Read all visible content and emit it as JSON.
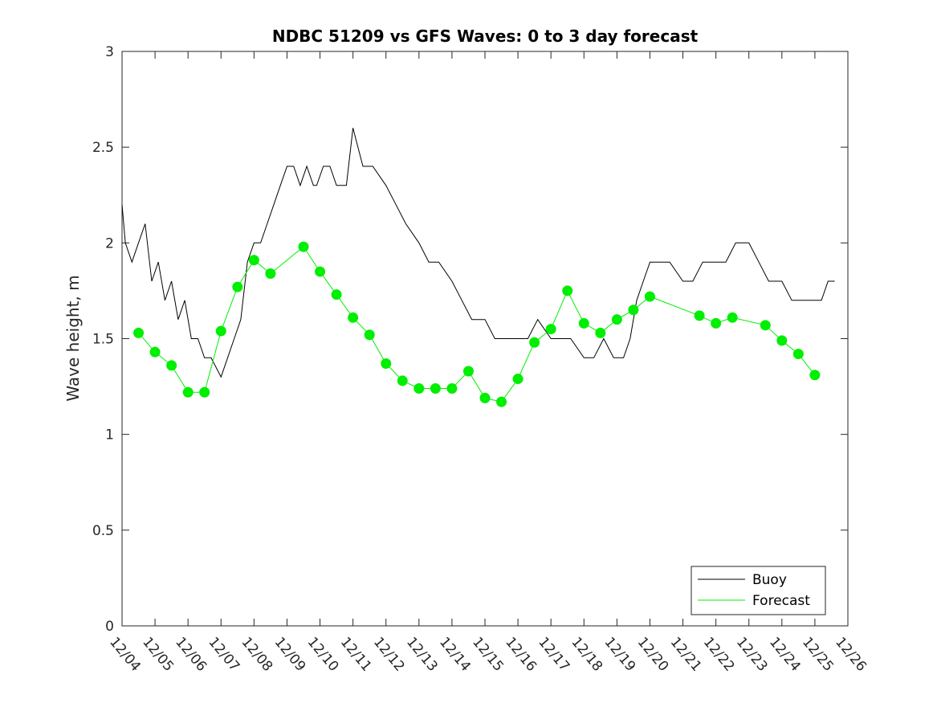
{
  "chart_data": {
    "type": "line",
    "title": "NDBC 51209 vs GFS Waves: 0 to 3 day forecast",
    "xlabel": "",
    "ylabel": "Wave height, m",
    "xlim": [
      0,
      22
    ],
    "ylim": [
      0,
      3
    ],
    "grid": false,
    "legend_position": "bottom-right",
    "x_tick_labels": [
      "12/04",
      "12/05",
      "12/06",
      "12/07",
      "12/08",
      "12/09",
      "12/10",
      "12/11",
      "12/12",
      "12/13",
      "12/14",
      "12/15",
      "12/16",
      "12/17",
      "12/18",
      "12/19",
      "12/20",
      "12/21",
      "12/22",
      "12/23",
      "12/24",
      "12/25",
      "12/26"
    ],
    "y_ticks": [
      0,
      0.5,
      1,
      1.5,
      2,
      2.5,
      3
    ],
    "y_tick_labels": [
      "0",
      "0.5",
      "1",
      "1.5",
      "2",
      "2.5",
      "3"
    ],
    "colors": {
      "buoy": "#000000",
      "forecast": "#00ee00"
    },
    "series": [
      {
        "name": "Buoy",
        "style": "line",
        "x": [
          0,
          0.1,
          0.3,
          0.5,
          0.7,
          0.9,
          1.1,
          1.3,
          1.5,
          1.7,
          1.9,
          2.1,
          2.3,
          2.5,
          2.7,
          3.0,
          3.2,
          3.4,
          3.6,
          3.8,
          4.0,
          4.2,
          4.4,
          4.6,
          4.8,
          5.0,
          5.2,
          5.4,
          5.6,
          5.8,
          5.9,
          6.1,
          6.3,
          6.5,
          6.8,
          7.0,
          7.3,
          7.6,
          8.0,
          8.3,
          8.6,
          9.0,
          9.3,
          9.6,
          10.0,
          10.3,
          10.6,
          11.0,
          11.3,
          11.6,
          12.0,
          12.3,
          12.6,
          13.0,
          13.3,
          13.6,
          14.0,
          14.3,
          14.6,
          14.9,
          15.2,
          15.4,
          15.6,
          15.8,
          16.0,
          16.3,
          16.6,
          17.0,
          17.3,
          17.6,
          18.0,
          18.3,
          18.6,
          19.0,
          19.3,
          19.6,
          20.0,
          20.3,
          20.6,
          21.0,
          21.2,
          21.4,
          21.6
        ],
        "values": [
          2.2,
          2.0,
          1.9,
          2.0,
          2.1,
          1.8,
          1.9,
          1.7,
          1.8,
          1.6,
          1.7,
          1.5,
          1.5,
          1.4,
          1.4,
          1.3,
          1.4,
          1.5,
          1.6,
          1.9,
          2.0,
          2.0,
          2.1,
          2.2,
          2.3,
          2.4,
          2.4,
          2.3,
          2.4,
          2.3,
          2.3,
          2.4,
          2.4,
          2.3,
          2.3,
          2.6,
          2.4,
          2.4,
          2.3,
          2.2,
          2.1,
          2.0,
          1.9,
          1.9,
          1.8,
          1.7,
          1.6,
          1.6,
          1.5,
          1.5,
          1.5,
          1.5,
          1.6,
          1.5,
          1.5,
          1.5,
          1.4,
          1.4,
          1.5,
          1.4,
          1.4,
          1.5,
          1.7,
          1.8,
          1.9,
          1.9,
          1.9,
          1.8,
          1.8,
          1.9,
          1.9,
          1.9,
          2.0,
          2.0,
          1.9,
          1.8,
          1.8,
          1.7,
          1.7,
          1.7,
          1.7,
          1.8,
          1.8
        ]
      },
      {
        "name": "Forecast",
        "style": "line+markers",
        "x": [
          0.5,
          1.0,
          1.5,
          2.0,
          2.5,
          3.0,
          3.5,
          4.0,
          4.5,
          5.5,
          6.0,
          6.5,
          7.0,
          7.5,
          8.0,
          8.5,
          9.0,
          9.5,
          10.0,
          10.5,
          11.0,
          11.5,
          12.0,
          12.5,
          13.0,
          13.5,
          14.0,
          14.5,
          15.0,
          15.5,
          16.0,
          17.5,
          18.0,
          18.5,
          19.5,
          20.0,
          20.5,
          21.0
        ],
        "values": [
          1.53,
          1.43,
          1.36,
          1.22,
          1.22,
          1.54,
          1.77,
          1.91,
          1.84,
          1.98,
          1.85,
          1.73,
          1.61,
          1.52,
          1.37,
          1.28,
          1.24,
          1.24,
          1.24,
          1.33,
          1.19,
          1.17,
          1.29,
          1.48,
          1.55,
          1.75,
          1.58,
          1.53,
          1.6,
          1.65,
          1.72,
          1.62,
          1.58,
          1.61,
          1.57,
          1.49,
          1.42,
          1.31
        ]
      }
    ]
  }
}
